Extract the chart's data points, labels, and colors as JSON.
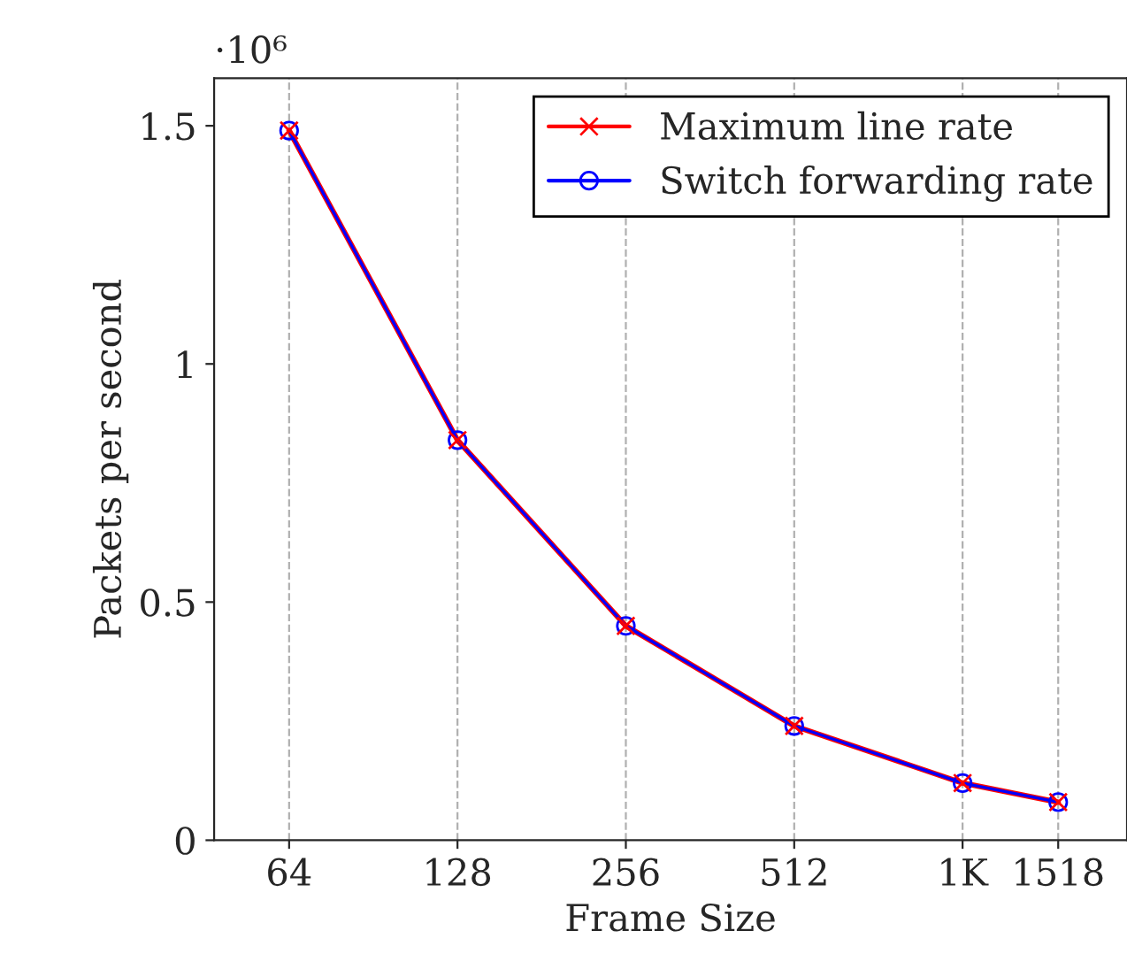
{
  "chart_data": {
    "type": "line",
    "xlabel": "Frame Size",
    "ylabel": "Packets per second",
    "annotations": [
      "·10⁶"
    ],
    "log": "x",
    "xlim": [
      47,
      2015
    ],
    "ylim": [
      0,
      1.6
    ],
    "xticks": [
      64,
      128,
      256,
      512,
      {
        "value": 1024,
        "label": "1K"
      },
      1518
    ],
    "yticks": [
      0,
      0.5,
      1,
      1.5
    ],
    "x": [
      64,
      128,
      256,
      512,
      1024,
      1518
    ],
    "grid": "x",
    "legend": "top right",
    "line_style": "solid",
    "series": [
      {
        "name": "Maximum line rate",
        "color": "#ff0000",
        "marker": "cross",
        "values": [
          1.49,
          0.84,
          0.45,
          0.24,
          0.12,
          0.08
        ]
      },
      {
        "name": "Switch forwarding rate",
        "color": "#0000ff",
        "marker": "circle",
        "values": [
          1.49,
          0.84,
          0.45,
          0.24,
          0.12,
          0.08
        ]
      }
    ]
  }
}
